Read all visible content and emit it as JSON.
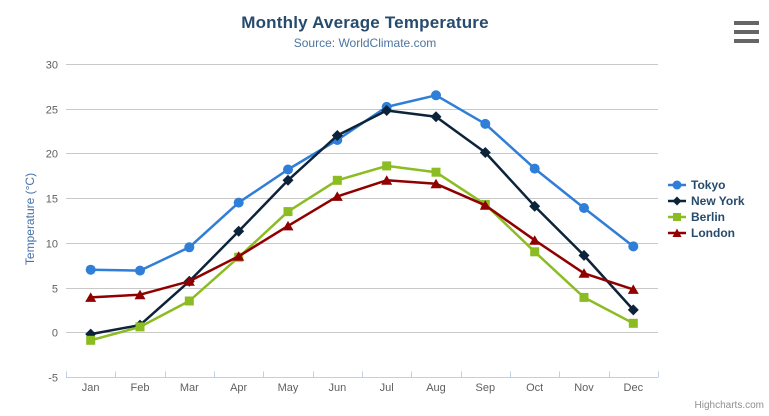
{
  "header": {
    "title": "Monthly Average Temperature",
    "subtitle": "Source: WorldClimate.com"
  },
  "icons": {
    "context_menu": "hamburger-icon"
  },
  "credits": "Highcharts.com",
  "colors": {
    "background": "#FFFFFF",
    "title": "#274b6d",
    "subtitle": "#4d759e",
    "yaxis_title": "#4572A7",
    "tick_label": "#606060",
    "grid": "#C8C8C8",
    "axis_line": "#C0D0E0",
    "legend_text": "#274b6d",
    "credits": "#909090",
    "menu_icon": "#666666"
  },
  "chart_data": {
    "type": "line",
    "title": "Monthly Average Temperature",
    "subtitle": "Source: WorldClimate.com",
    "xlabel": "",
    "ylabel": "Temperature (°C)",
    "ylim": [
      -5,
      30
    ],
    "yticks": [
      -5,
      0,
      5,
      10,
      15,
      20,
      25,
      30
    ],
    "grid": true,
    "legend_position": "right",
    "categories": [
      "Jan",
      "Feb",
      "Mar",
      "Apr",
      "May",
      "Jun",
      "Jul",
      "Aug",
      "Sep",
      "Oct",
      "Nov",
      "Dec"
    ],
    "series": [
      {
        "name": "Tokyo",
        "color": "#2f7ed8",
        "marker": "circle",
        "values": [
          7.0,
          6.9,
          9.5,
          14.5,
          18.2,
          21.5,
          25.2,
          26.5,
          23.3,
          18.3,
          13.9,
          9.6
        ]
      },
      {
        "name": "New York",
        "color": "#0d233a",
        "marker": "diamond",
        "values": [
          -0.2,
          0.8,
          5.7,
          11.3,
          17.0,
          22.0,
          24.8,
          24.1,
          20.1,
          14.1,
          8.6,
          2.5
        ]
      },
      {
        "name": "Berlin",
        "color": "#8bbc21",
        "marker": "square",
        "values": [
          -0.9,
          0.6,
          3.5,
          8.4,
          13.5,
          17.0,
          18.6,
          17.9,
          14.3,
          9.0,
          3.9,
          1.0
        ]
      },
      {
        "name": "London",
        "color": "#910000",
        "marker": "triangle",
        "values": [
          3.9,
          4.2,
          5.7,
          8.5,
          11.9,
          15.2,
          17.0,
          16.6,
          14.2,
          10.3,
          6.6,
          4.8
        ]
      }
    ]
  }
}
